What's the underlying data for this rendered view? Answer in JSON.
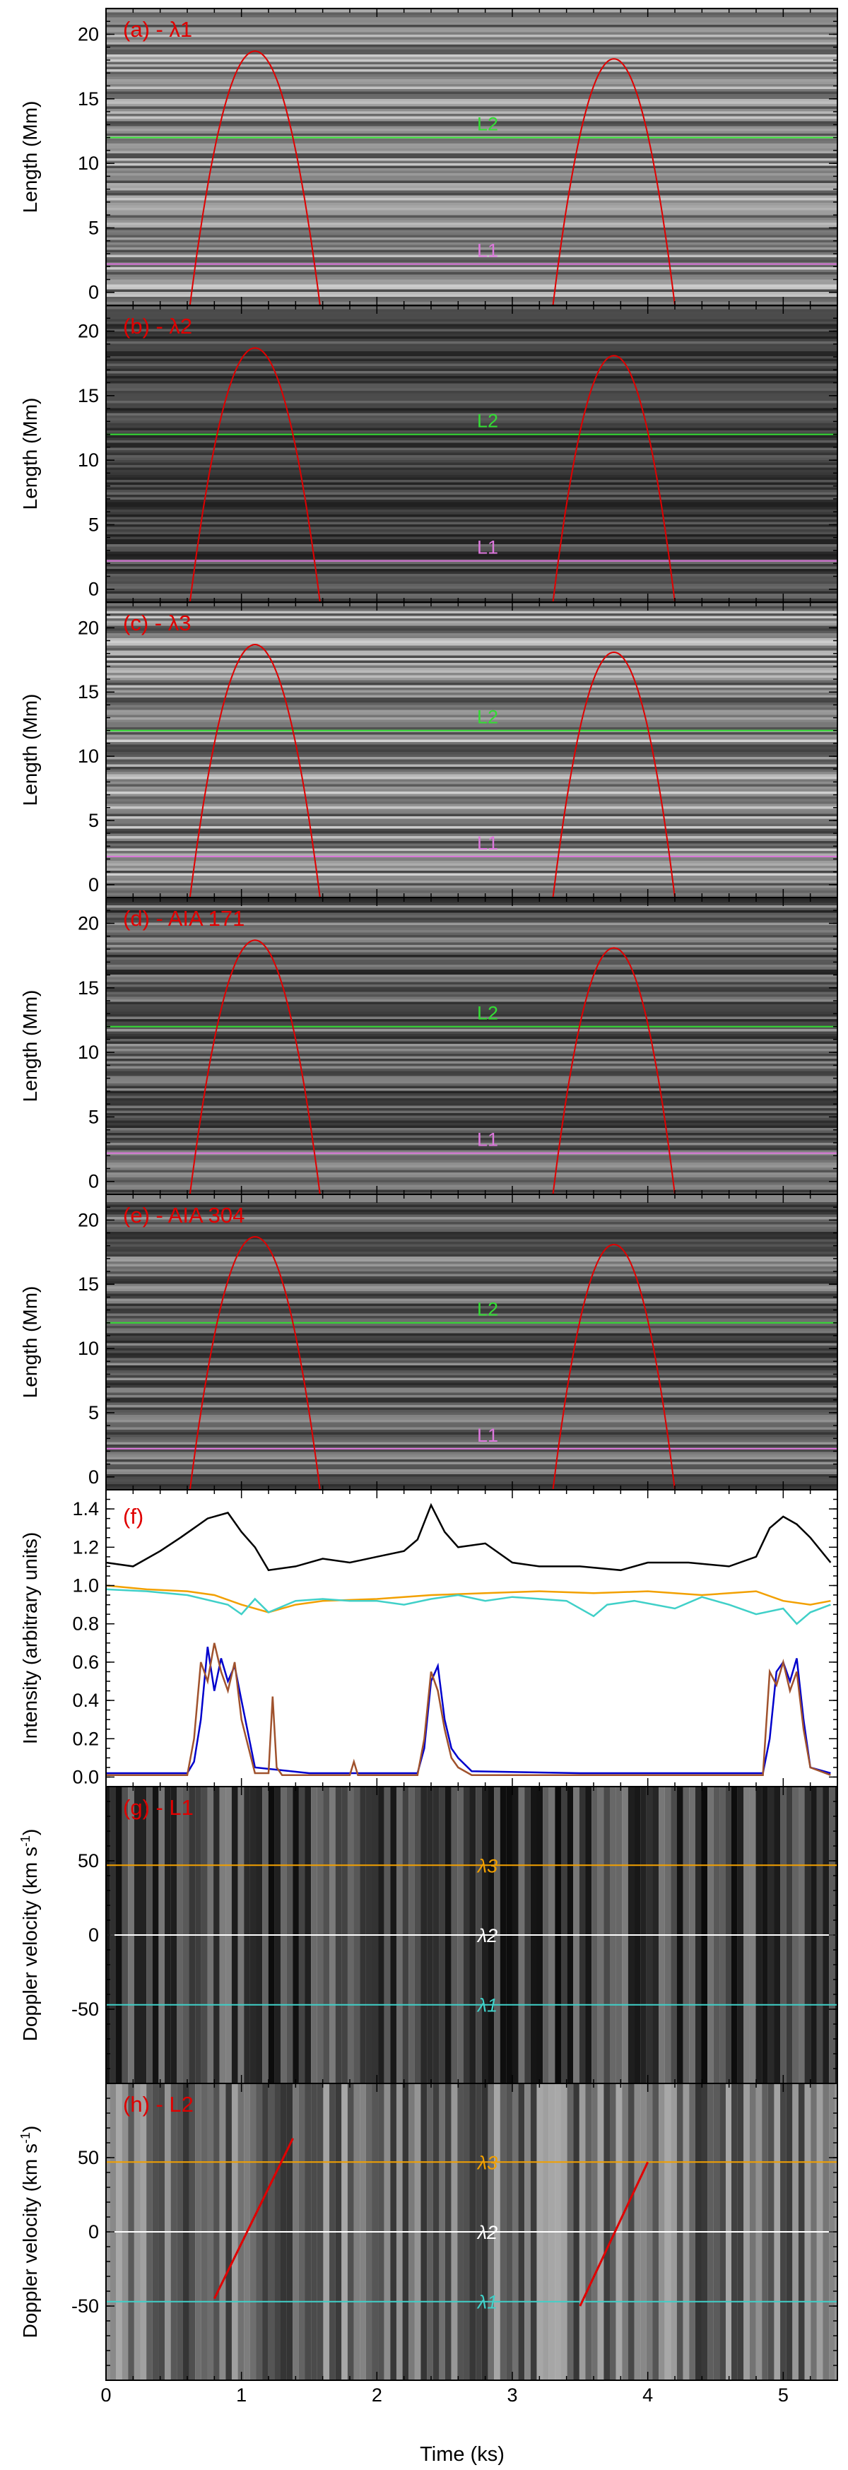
{
  "figure": {
    "x_axis": {
      "label": "Time (ks)",
      "range": [
        0,
        5.4
      ],
      "ticks": [
        0,
        1,
        2,
        3,
        4,
        5
      ]
    },
    "length_axis": {
      "label": "Length (Mm)",
      "range": [
        -1,
        22
      ],
      "ticks": [
        0,
        5,
        10,
        15,
        20
      ]
    },
    "intensity_axis": {
      "label": "Intensity (arbitrary units)",
      "range": [
        -0.05,
        1.5
      ],
      "ticks": [
        0.0,
        0.2,
        0.4,
        0.6,
        0.8,
        1.0,
        1.2,
        1.4
      ]
    },
    "velocity_axis": {
      "label": "Doppler velocity (km s",
      "label_sup": "-1",
      "label_end": ")",
      "range": [
        -100,
        100
      ],
      "ticks": [
        -50,
        0,
        50
      ]
    }
  },
  "chart_data": [
    {
      "type": "heatmap",
      "id": "a",
      "title": "(a) - λ1",
      "cut_lines": [
        {
          "label": "L2",
          "y": 12.0,
          "color": "#33dd33"
        },
        {
          "label": "L1",
          "y": 2.2,
          "color": "#dd77dd"
        }
      ],
      "parabolas": [
        {
          "x_start": 0.62,
          "x_end": 1.58,
          "peak": 18.7
        },
        {
          "x_start": 3.3,
          "x_end": 4.2,
          "peak": 18.1
        }
      ]
    },
    {
      "type": "heatmap",
      "id": "b",
      "title": "(b) - λ2",
      "cut_lines": [
        {
          "label": "L2",
          "y": 12.0,
          "color": "#33dd33"
        },
        {
          "label": "L1",
          "y": 2.2,
          "color": "#dd77dd"
        }
      ],
      "parabolas": [
        {
          "x_start": 0.62,
          "x_end": 1.58,
          "peak": 18.7
        },
        {
          "x_start": 3.3,
          "x_end": 4.2,
          "peak": 18.1
        }
      ]
    },
    {
      "type": "heatmap",
      "id": "c",
      "title": "(c) - λ3",
      "cut_lines": [
        {
          "label": "L2",
          "y": 12.0,
          "color": "#33dd33"
        },
        {
          "label": "L1",
          "y": 2.2,
          "color": "#dd77dd"
        }
      ],
      "parabolas": [
        {
          "x_start": 0.62,
          "x_end": 1.58,
          "peak": 18.7
        },
        {
          "x_start": 3.3,
          "x_end": 4.2,
          "peak": 18.1
        }
      ]
    },
    {
      "type": "heatmap",
      "id": "d",
      "title": "(d) - AIA 171",
      "cut_lines": [
        {
          "label": "L2",
          "y": 12.0,
          "color": "#33dd33"
        },
        {
          "label": "L1",
          "y": 2.2,
          "color": "#dd77dd"
        }
      ],
      "parabolas": [
        {
          "x_start": 0.62,
          "x_end": 1.58,
          "peak": 18.7
        },
        {
          "x_start": 3.3,
          "x_end": 4.2,
          "peak": 18.1
        }
      ]
    },
    {
      "type": "heatmap",
      "id": "e",
      "title": "(e) - AIA 304",
      "cut_lines": [
        {
          "label": "L2",
          "y": 12.0,
          "color": "#33dd33"
        },
        {
          "label": "L1",
          "y": 2.2,
          "color": "#dd77dd"
        }
      ],
      "parabolas": [
        {
          "x_start": 0.62,
          "x_end": 1.58,
          "peak": 18.7
        },
        {
          "x_start": 3.3,
          "x_end": 4.2,
          "peak": 18.1
        }
      ]
    },
    {
      "type": "line",
      "id": "f",
      "title": "(f)",
      "series": [
        {
          "name": "black",
          "color": "#000000",
          "x": [
            0,
            0.2,
            0.4,
            0.55,
            0.65,
            0.75,
            0.9,
            1.0,
            1.1,
            1.2,
            1.4,
            1.6,
            1.8,
            2.0,
            2.2,
            2.3,
            2.4,
            2.5,
            2.6,
            2.8,
            3.0,
            3.2,
            3.5,
            3.8,
            4.0,
            4.3,
            4.6,
            4.8,
            4.9,
            5.0,
            5.1,
            5.2,
            5.35
          ],
          "y": [
            1.12,
            1.1,
            1.18,
            1.25,
            1.3,
            1.35,
            1.38,
            1.28,
            1.2,
            1.08,
            1.1,
            1.14,
            1.12,
            1.15,
            1.18,
            1.24,
            1.42,
            1.28,
            1.2,
            1.22,
            1.12,
            1.1,
            1.1,
            1.08,
            1.12,
            1.12,
            1.1,
            1.15,
            1.3,
            1.36,
            1.32,
            1.25,
            1.12
          ]
        },
        {
          "name": "orange",
          "color": "#f2a000",
          "x": [
            0,
            0.3,
            0.6,
            0.8,
            1.0,
            1.2,
            1.4,
            1.6,
            2.0,
            2.4,
            2.8,
            3.2,
            3.6,
            4.0,
            4.4,
            4.8,
            5.0,
            5.2,
            5.35
          ],
          "y": [
            1.0,
            0.98,
            0.97,
            0.95,
            0.9,
            0.86,
            0.9,
            0.92,
            0.93,
            0.95,
            0.96,
            0.97,
            0.96,
            0.97,
            0.95,
            0.97,
            0.92,
            0.9,
            0.92
          ]
        },
        {
          "name": "turquoise",
          "color": "#40d0c8",
          "x": [
            0,
            0.3,
            0.6,
            0.9,
            1.0,
            1.1,
            1.2,
            1.4,
            1.6,
            1.8,
            2.0,
            2.2,
            2.4,
            2.6,
            2.8,
            3.0,
            3.4,
            3.6,
            3.7,
            3.9,
            4.2,
            4.4,
            4.6,
            4.8,
            5.0,
            5.1,
            5.2,
            5.35
          ],
          "y": [
            0.98,
            0.97,
            0.95,
            0.9,
            0.85,
            0.93,
            0.86,
            0.92,
            0.93,
            0.92,
            0.92,
            0.9,
            0.93,
            0.95,
            0.92,
            0.94,
            0.92,
            0.84,
            0.9,
            0.92,
            0.88,
            0.94,
            0.9,
            0.85,
            0.88,
            0.8,
            0.86,
            0.9
          ]
        },
        {
          "name": "blue",
          "color": "#0000cc",
          "x": [
            0,
            0.6,
            0.65,
            0.7,
            0.75,
            0.8,
            0.85,
            0.9,
            0.95,
            1.0,
            1.1,
            1.5,
            2.3,
            2.35,
            2.4,
            2.45,
            2.5,
            2.55,
            2.6,
            2.7,
            3.5,
            4.85,
            4.9,
            4.95,
            5.0,
            5.05,
            5.1,
            5.15,
            5.2,
            5.35
          ],
          "y": [
            0.02,
            0.02,
            0.08,
            0.3,
            0.68,
            0.45,
            0.62,
            0.5,
            0.58,
            0.4,
            0.05,
            0.02,
            0.02,
            0.15,
            0.5,
            0.58,
            0.3,
            0.15,
            0.1,
            0.03,
            0.02,
            0.02,
            0.2,
            0.55,
            0.6,
            0.5,
            0.62,
            0.3,
            0.05,
            0.02
          ]
        },
        {
          "name": "brown",
          "color": "#a0522d",
          "x": [
            0,
            0.6,
            0.65,
            0.7,
            0.75,
            0.8,
            0.85,
            0.9,
            0.95,
            1.0,
            1.1,
            1.2,
            1.23,
            1.26,
            1.3,
            1.8,
            1.83,
            1.86,
            2.3,
            2.35,
            2.4,
            2.45,
            2.5,
            2.55,
            2.6,
            2.7,
            4.85,
            4.9,
            4.95,
            5.0,
            5.05,
            5.1,
            5.15,
            5.2,
            5.35
          ],
          "y": [
            0.01,
            0.01,
            0.2,
            0.6,
            0.5,
            0.7,
            0.55,
            0.45,
            0.6,
            0.3,
            0.02,
            0.02,
            0.42,
            0.05,
            0.01,
            0.01,
            0.08,
            0.01,
            0.01,
            0.2,
            0.55,
            0.45,
            0.25,
            0.1,
            0.05,
            0.01,
            0.01,
            0.55,
            0.48,
            0.6,
            0.45,
            0.55,
            0.25,
            0.05,
            0.01
          ]
        }
      ]
    },
    {
      "type": "heatmap",
      "id": "g",
      "title": "(g) - L1",
      "ref_lines": [
        {
          "label": "λ3",
          "y": 47,
          "color": "#f2a000"
        },
        {
          "label": "λ2",
          "y": 0,
          "color": "#ffffff"
        },
        {
          "label": "λ1",
          "y": -47,
          "color": "#40d0c8"
        }
      ],
      "fits": []
    },
    {
      "type": "heatmap",
      "id": "h",
      "title": "(h) - L2",
      "ref_lines": [
        {
          "label": "λ3",
          "y": 47,
          "color": "#f2a000"
        },
        {
          "label": "λ2",
          "y": 0,
          "color": "#ffffff"
        },
        {
          "label": "λ1",
          "y": -47,
          "color": "#40d0c8"
        }
      ],
      "fits": [
        {
          "x": [
            0.8,
            1.38
          ],
          "y": [
            -45,
            63
          ]
        },
        {
          "x": [
            3.5,
            4.0
          ],
          "y": [
            -50,
            47
          ]
        }
      ]
    }
  ]
}
